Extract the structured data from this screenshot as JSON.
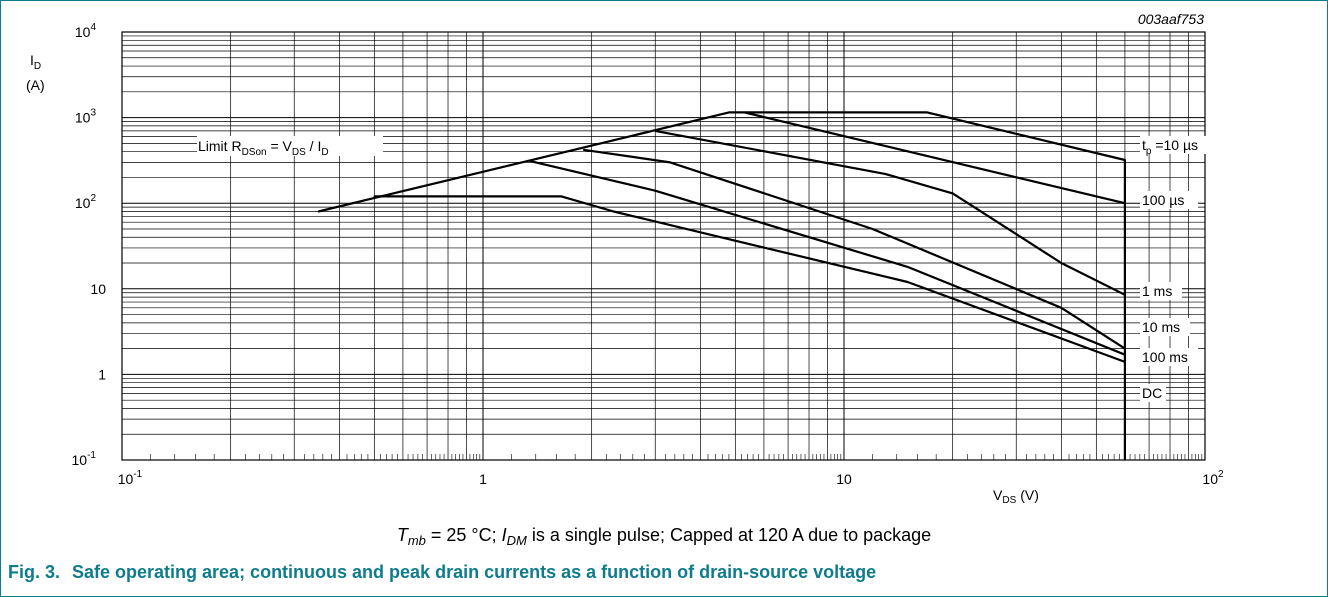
{
  "figure": {
    "code": "003aaf753",
    "caption": {
      "t": "T",
      "t_sub": "mb",
      "part1": " = 25 °C; ",
      "i": "I",
      "i_sub": "DM",
      "part2": " is a single pulse; Capped at 120 A due to package"
    },
    "title_number": "Fig. 3.",
    "title_text": "Safe operating area; continuous and peak drain currents as a function of drain-source voltage"
  },
  "chart_data": {
    "type": "line",
    "x_scale": "log",
    "y_scale": "log",
    "xlim": [
      0.1,
      100
    ],
    "ylim": [
      0.1,
      10000
    ],
    "grid": true,
    "ylabel": {
      "main": "I",
      "sub": "D",
      "unit": "(A)"
    },
    "xlabel": {
      "main": "V",
      "sub": "DS",
      "unit": "(V)"
    },
    "x_ticks": [
      {
        "base": "10",
        "exp": "-1"
      },
      {
        "base": "1",
        "exp": ""
      },
      {
        "base": "10",
        "exp": ""
      },
      {
        "base": "10",
        "exp": "2"
      }
    ],
    "y_ticks": [
      {
        "base": "10",
        "exp": "-1"
      },
      {
        "base": "1",
        "exp": ""
      },
      {
        "base": "10",
        "exp": ""
      },
      {
        "base": "10",
        "exp": "2"
      },
      {
        "base": "10",
        "exp": "3"
      },
      {
        "base": "10",
        "exp": "4"
      }
    ],
    "limit_annotation": {
      "pre": "Limit R",
      "sub1": "DSon",
      "mid": " = V",
      "sub2": "DS",
      "mid2": " / I",
      "sub3": "D"
    },
    "curve_labels": [
      {
        "pre": "t",
        "sub": "p",
        "post": " =10 µs"
      },
      {
        "pre": "100 µs",
        "sub": "",
        "post": ""
      },
      {
        "pre": "1 ms",
        "sub": "",
        "post": ""
      },
      {
        "pre": "10 ms",
        "sub": "",
        "post": ""
      },
      {
        "pre": "100 ms",
        "sub": "",
        "post": ""
      },
      {
        "pre": "DC",
        "sub": "",
        "post": ""
      }
    ],
    "series": [
      {
        "values": [
          [
            0.35,
            80
          ],
          [
            4.8,
            1150
          ],
          [
            17,
            1150
          ],
          [
            60,
            320
          ],
          [
            60,
            0.1
          ]
        ]
      },
      {
        "values": [
          [
            5.3,
            1150
          ],
          [
            60,
            100
          ]
        ]
      },
      {
        "values": [
          [
            3.0,
            700
          ],
          [
            13,
            220
          ],
          [
            20,
            130
          ],
          [
            40,
            20
          ],
          [
            60,
            8.5
          ]
        ]
      },
      {
        "values": [
          [
            1.9,
            420
          ],
          [
            3.3,
            300
          ],
          [
            12,
            50
          ],
          [
            40,
            6
          ],
          [
            60,
            2
          ]
        ]
      },
      {
        "values": [
          [
            1.35,
            310
          ],
          [
            3.0,
            140
          ],
          [
            15,
            18
          ],
          [
            60,
            1.7
          ]
        ]
      },
      {
        "values": [
          [
            0.5,
            120
          ],
          [
            1.65,
            120
          ],
          [
            2.3,
            80
          ],
          [
            15,
            12
          ],
          [
            60,
            1.4
          ]
        ]
      }
    ]
  }
}
